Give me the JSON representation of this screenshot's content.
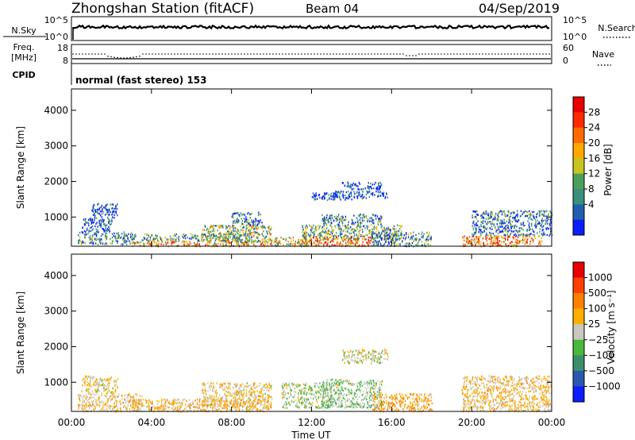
{
  "header": {
    "station": "Zhongshan Station (fitACF)",
    "beam": "Beam 04",
    "date": "04/Sep/2019"
  },
  "top_panels": {
    "nsky_label": "N.Sky",
    "nsearch_label": "N.Search",
    "nsky_ticks": [
      "10^5",
      "10^0"
    ],
    "nsearch_ticks": [
      "10^5",
      "10^0"
    ],
    "freq_label": "Freq.",
    "freq_unit": "[MHz]",
    "freq_ticks": [
      "18",
      "8"
    ],
    "nave_label": "Nave",
    "nave_ticks": [
      "60",
      "0"
    ],
    "cpid_label": "CPID",
    "cpid_value": "normal (fast stereo) 153"
  },
  "x_axis": {
    "label": "Time UT",
    "ticks": [
      "00:00",
      "04:00",
      "08:00",
      "12:00",
      "16:00",
      "20:00",
      "00:00"
    ]
  },
  "colorbars": {
    "power": {
      "label": "Power [dB]",
      "ticks": [
        "4",
        "8",
        "12",
        "16",
        "20",
        "24",
        "28"
      ],
      "colors": [
        "#0a1eff",
        "#1f5fae",
        "#3a8f7a",
        "#4aa05a",
        "#c9c320",
        "#ffa800",
        "#ff6a00",
        "#ff2a00",
        "#e80000"
      ]
    },
    "velocity": {
      "label": "Velocity [m s⁻¹]",
      "ticks": [
        "1000",
        "500",
        "100",
        "25",
        "−25",
        "−100",
        "−500",
        "−1000"
      ],
      "colors": [
        "#0a1eff",
        "#2a58b0",
        "#3a8f6a",
        "#4ab83a",
        "#c8c8c0",
        "#ffb000",
        "#ff8000",
        "#ff4000",
        "#e80000"
      ]
    }
  },
  "chart_data": [
    {
      "type": "heatmap",
      "title": "",
      "xlabel": "Time UT",
      "ylabel": "Slant Range [km]",
      "x_range_hours": [
        0,
        24
      ],
      "ylim": [
        180,
        4600
      ],
      "y_ticks": [
        1000,
        2000,
        3000,
        4000
      ],
      "quantity": "Power [dB]",
      "value_range": [
        2,
        30
      ],
      "clusters": [
        {
          "t": [
            0.3,
            3.2
          ],
          "r": [
            250,
            600
          ],
          "v": 10
        },
        {
          "t": [
            0.5,
            2.0
          ],
          "r": [
            600,
            1000
          ],
          "v": 6
        },
        {
          "t": [
            1.0,
            2.3
          ],
          "r": [
            1000,
            1400
          ],
          "v": 5
        },
        {
          "t": [
            3.0,
            10.0
          ],
          "r": [
            200,
            350
          ],
          "v": 20
        },
        {
          "t": [
            3.5,
            9.0
          ],
          "r": [
            350,
            550
          ],
          "v": 12
        },
        {
          "t": [
            6.5,
            10.0
          ],
          "r": [
            300,
            800
          ],
          "v": 14
        },
        {
          "t": [
            8.0,
            9.5
          ],
          "r": [
            800,
            1150
          ],
          "v": 8
        },
        {
          "t": [
            10.0,
            12.0
          ],
          "r": [
            200,
            450
          ],
          "v": 16
        },
        {
          "t": [
            11.5,
            15.0
          ],
          "r": [
            200,
            500
          ],
          "v": 22
        },
        {
          "t": [
            11.5,
            16.5
          ],
          "r": [
            400,
            800
          ],
          "v": 12
        },
        {
          "t": [
            12.5,
            15.5
          ],
          "r": [
            800,
            1100
          ],
          "v": 9
        },
        {
          "t": [
            12.0,
            14.0
          ],
          "r": [
            1500,
            1700
          ],
          "v": 5
        },
        {
          "t": [
            13.0,
            15.8
          ],
          "r": [
            1550,
            1750
          ],
          "v": 5
        },
        {
          "t": [
            13.5,
            15.5
          ],
          "r": [
            1800,
            2000
          ],
          "v": 4
        },
        {
          "t": [
            15.0,
            18.0
          ],
          "r": [
            200,
            600
          ],
          "v": 10
        },
        {
          "t": [
            19.5,
            23.5
          ],
          "r": [
            200,
            500
          ],
          "v": 22
        },
        {
          "t": [
            20.0,
            24.0
          ],
          "r": [
            500,
            1200
          ],
          "v": 8
        }
      ]
    },
    {
      "type": "heatmap",
      "title": "",
      "xlabel": "Time UT",
      "ylabel": "Slant Range [km]",
      "x_range_hours": [
        0,
        24
      ],
      "ylim": [
        180,
        4600
      ],
      "y_ticks": [
        1000,
        2000,
        3000,
        4000
      ],
      "quantity": "Velocity [m s-1]",
      "value_range": [
        -1000,
        1000
      ],
      "clusters": [
        {
          "t": [
            0.3,
            3.5
          ],
          "r": [
            200,
            700
          ],
          "v": -150
        },
        {
          "t": [
            0.5,
            2.3
          ],
          "r": [
            700,
            1200
          ],
          "v": -80
        },
        {
          "t": [
            3.0,
            10.0
          ],
          "r": [
            200,
            550
          ],
          "v": -200
        },
        {
          "t": [
            6.5,
            10.0
          ],
          "r": [
            300,
            1000
          ],
          "v": -120
        },
        {
          "t": [
            10.5,
            13.0
          ],
          "r": [
            300,
            1000
          ],
          "v": 60
        },
        {
          "t": [
            12.5,
            15.5
          ],
          "r": [
            300,
            1100
          ],
          "v": 120
        },
        {
          "t": [
            13.5,
            15.8
          ],
          "r": [
            1550,
            1950
          ],
          "v": 0
        },
        {
          "t": [
            15.0,
            18.0
          ],
          "r": [
            200,
            700
          ],
          "v": -300
        },
        {
          "t": [
            19.5,
            24.0
          ],
          "r": [
            200,
            1200
          ],
          "v": -150
        }
      ]
    }
  ]
}
